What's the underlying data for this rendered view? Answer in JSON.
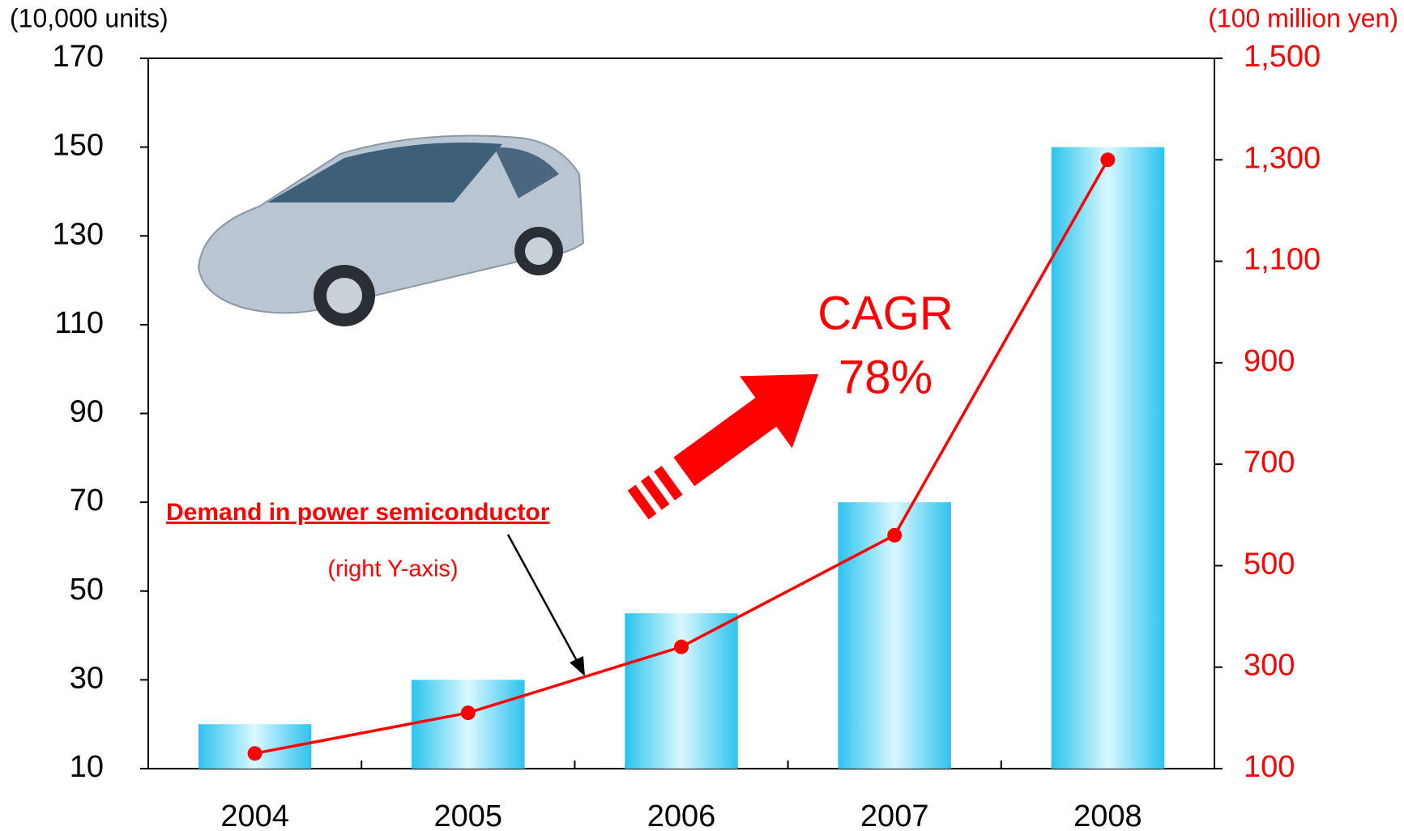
{
  "chart_data": {
    "type": "bar-line",
    "y_label": "(10,000 units)",
    "y2_label": "(100 million yen)",
    "annotations": [
      "CAGR",
      "78%",
      "(right Y-axis)"
    ],
    "categories": [
      "2004",
      "2005",
      "2006",
      "2007",
      "2008"
    ],
    "series": [
      {
        "type": "bar",
        "color": "#33c8f0",
        "values": [
          20,
          30,
          45,
          70,
          150
        ]
      },
      {
        "type": "line",
        "name": "Demand in power semiconductor",
        "color": "#ff0000",
        "axis": "y2",
        "values": [
          130,
          210,
          340,
          560,
          1300
        ]
      }
    ],
    "ylim": [
      10,
      170
    ],
    "yticks": [
      10,
      30,
      50,
      70,
      90,
      110,
      130,
      150,
      170
    ],
    "y2lim": [
      100,
      1500
    ],
    "y2ticks": [
      100,
      300,
      500,
      700,
      900,
      {
        "value": 1100,
        "label": "1,100"
      },
      {
        "value": 1300,
        "label": "1,300"
      },
      {
        "value": 1500,
        "label": "1,500"
      }
    ],
    "y2_color": "#ff0000"
  }
}
